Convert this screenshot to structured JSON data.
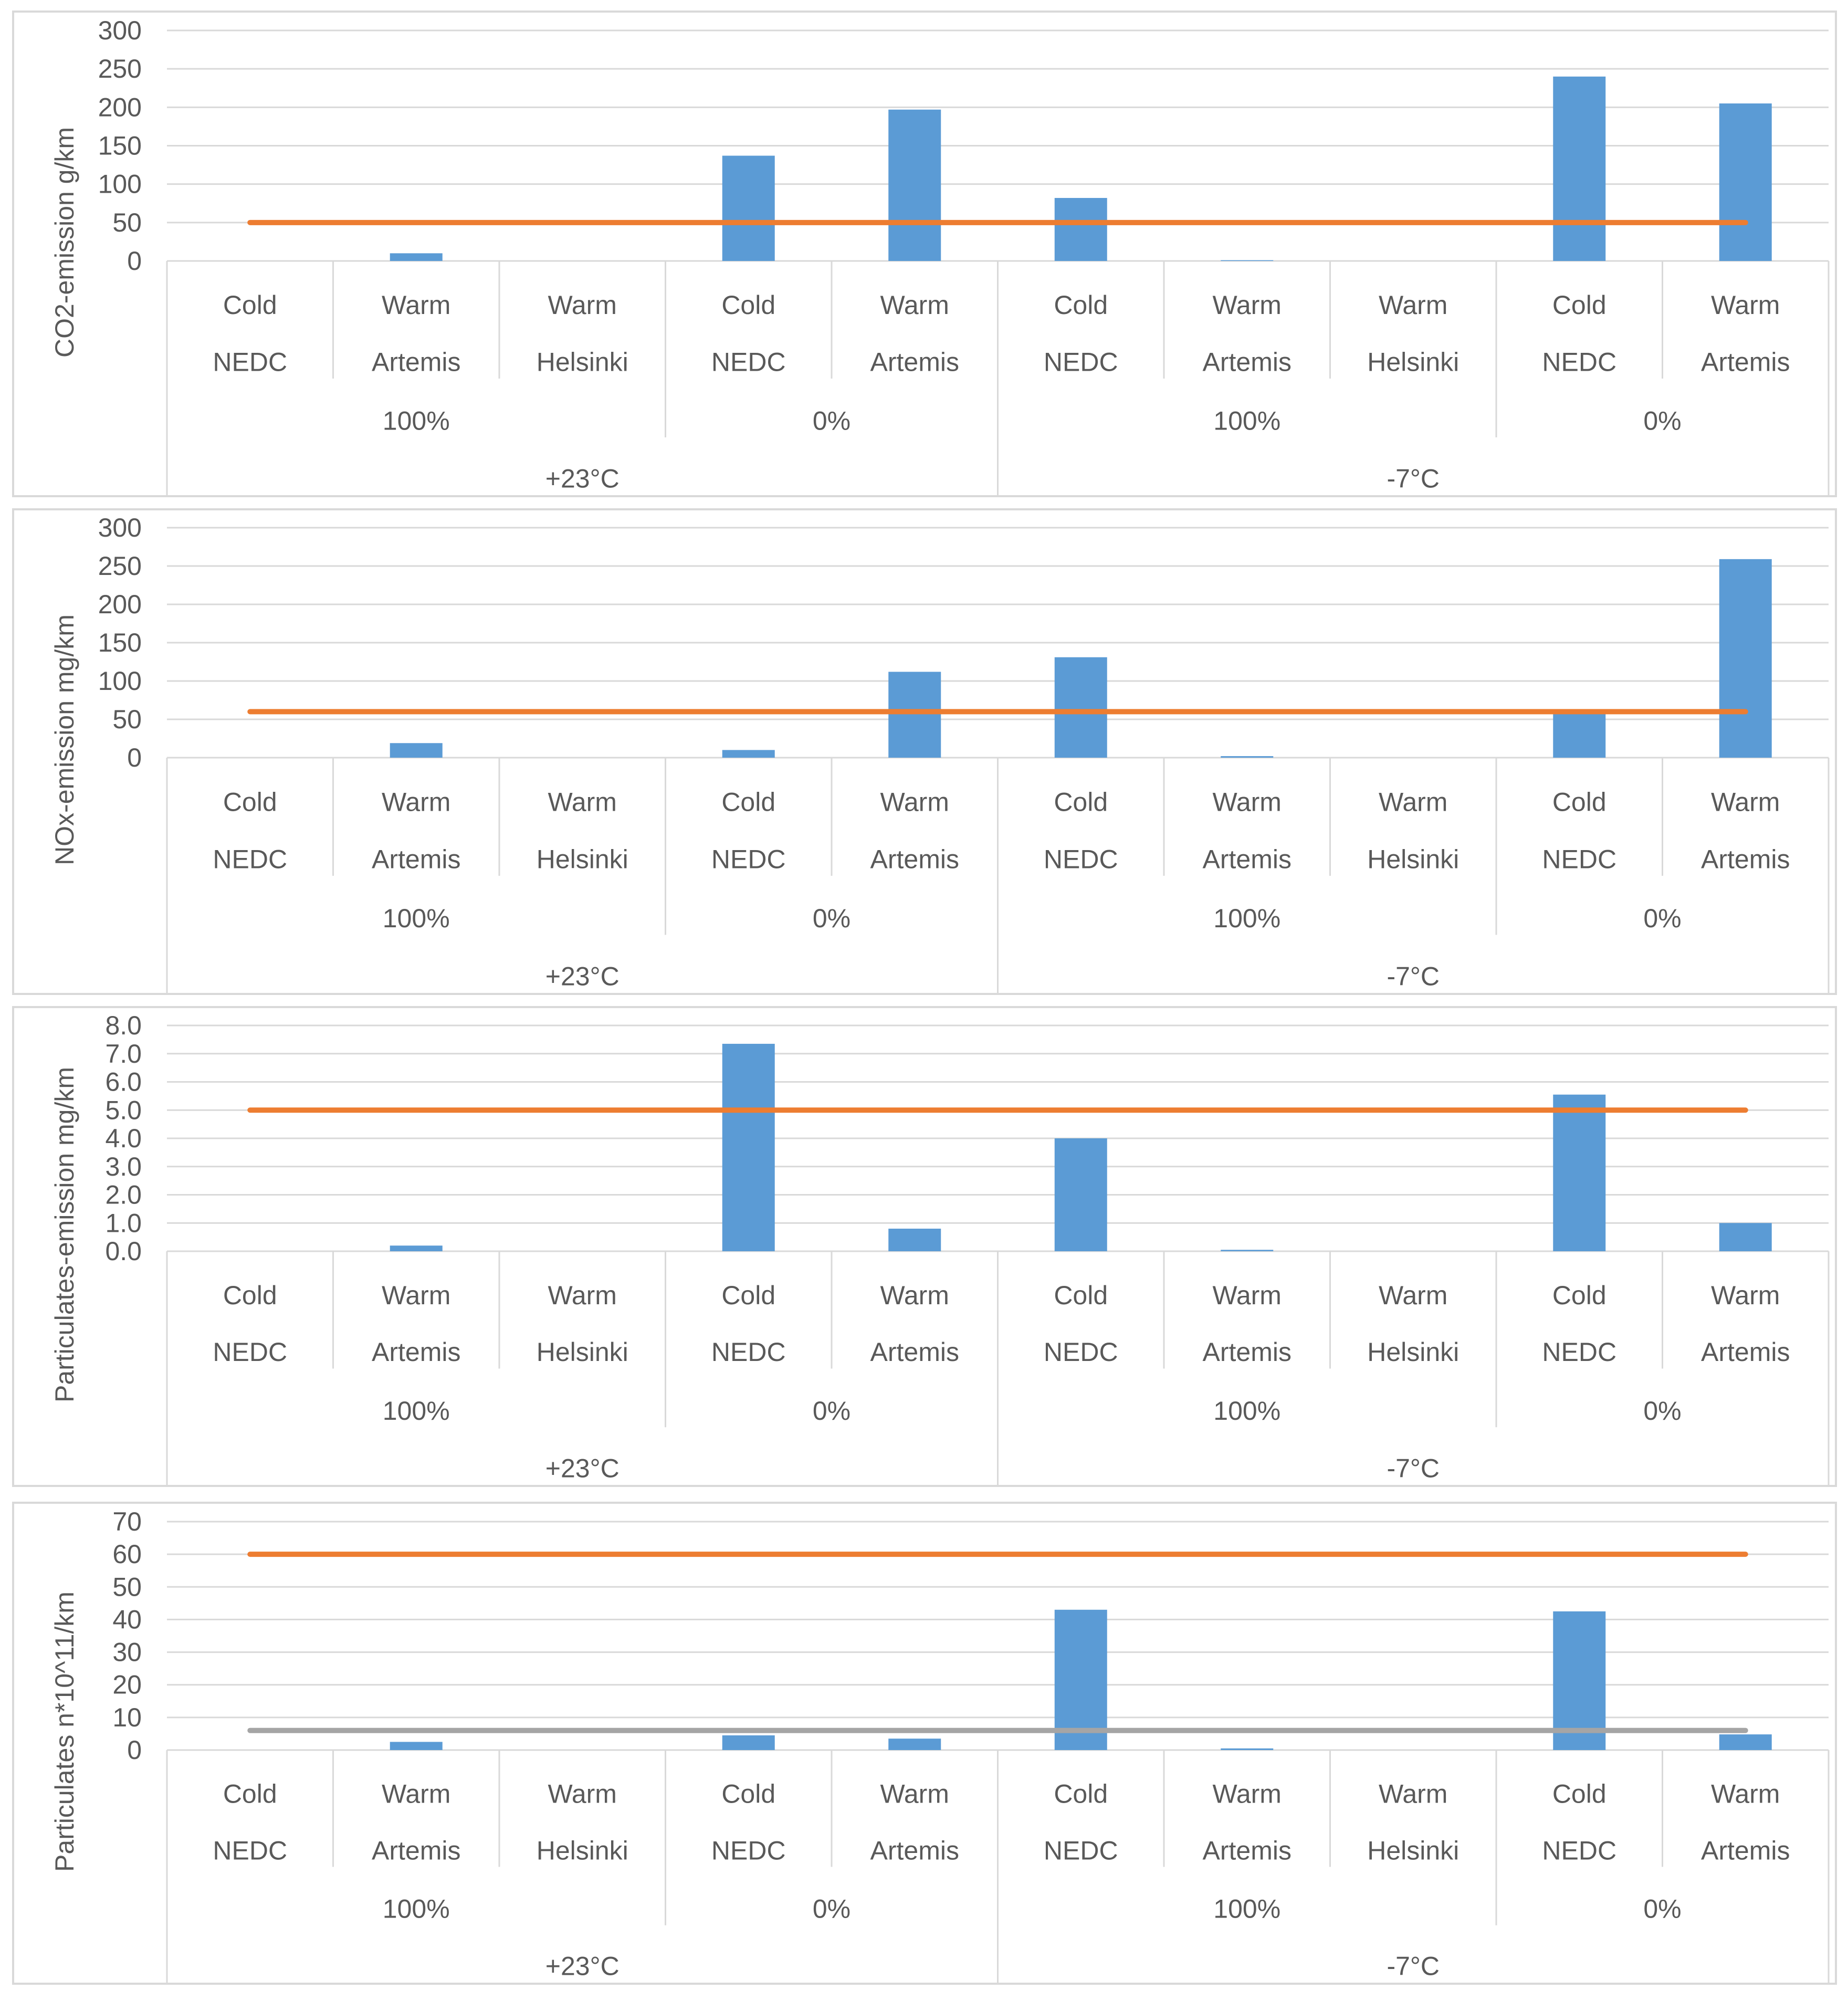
{
  "category_rows": {
    "starts": [
      "Cold",
      "Warm",
      "Warm",
      "Cold",
      "Warm",
      "Cold",
      "Warm",
      "Warm",
      "Cold",
      "Warm"
    ],
    "cycles": [
      "NEDC",
      "Artemis",
      "Helsinki",
      "NEDC",
      "Artemis",
      "NEDC",
      "Artemis",
      "Helsinki",
      "NEDC",
      "Artemis"
    ],
    "charge_groups": [
      "100%",
      "0%",
      "100%",
      "0%"
    ],
    "temperature_groups": [
      "+23°C",
      "-7°C"
    ]
  },
  "colors": {
    "bar": "#5b9bd5",
    "limit_line": "#ed7d31",
    "limit_line_2": "#a5a5a5",
    "grid": "#d9d9d9",
    "text": "#595959"
  },
  "chart_data": [
    {
      "type": "bar",
      "ylabel": "CO2-emission g/km",
      "ylim": [
        0,
        300
      ],
      "yticks": [
        "0",
        "50",
        "100",
        "150",
        "200",
        "250",
        "300"
      ],
      "grid": true,
      "values": [
        0,
        10,
        0,
        137,
        197,
        82,
        1,
        0,
        240,
        205
      ],
      "lines": [
        {
          "value": 50
        }
      ]
    },
    {
      "type": "bar",
      "ylabel": "NOx-emission mg/km",
      "ylim": [
        0,
        300
      ],
      "yticks": [
        "0",
        "50",
        "100",
        "150",
        "200",
        "250",
        "300"
      ],
      "grid": true,
      "values": [
        0,
        19,
        0,
        10,
        112,
        131,
        2,
        0,
        60,
        259
      ],
      "lines": [
        {
          "value": 60
        }
      ]
    },
    {
      "type": "bar",
      "ylabel": "Particulates-emission mg/km",
      "ylim": [
        0,
        8
      ],
      "yticks": [
        "0.0",
        "1.0",
        "2.0",
        "3.0",
        "4.0",
        "5.0",
        "6.0",
        "7.0",
        "8.0"
      ],
      "grid": true,
      "values": [
        0,
        0.2,
        0,
        7.35,
        0.8,
        4.0,
        0.05,
        0,
        5.55,
        1.0
      ],
      "lines": [
        {
          "value": 5
        }
      ]
    },
    {
      "type": "bar",
      "ylabel": "Particulates n*10^11/km",
      "ylim": [
        0,
        70
      ],
      "yticks": [
        "0",
        "10",
        "20",
        "30",
        "40",
        "50",
        "60",
        "70"
      ],
      "grid": true,
      "values": [
        0,
        2.5,
        0,
        4.5,
        3.5,
        43,
        0.5,
        0,
        42.5,
        4.8
      ],
      "lines": [
        {
          "value": 60
        },
        {
          "value": 6
        }
      ]
    }
  ]
}
